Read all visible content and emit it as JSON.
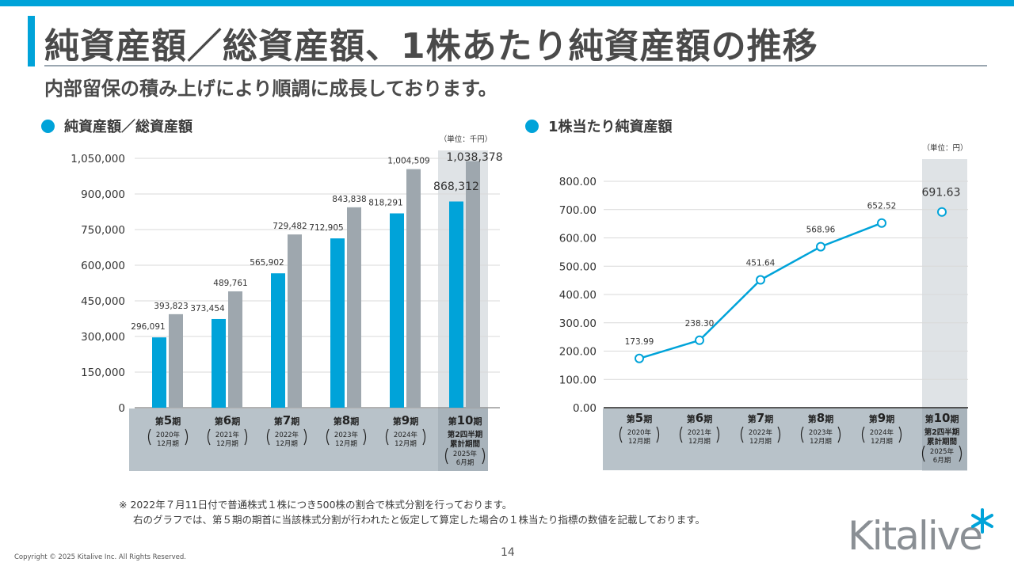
{
  "header": {
    "title": "純資産額／総資産額、1株あたり純資産額の推移",
    "subtitle": "内部留保の積み上げにより順調に成長しております。"
  },
  "colors": {
    "accent": "#00a3d9",
    "bar_gray": "#9ea7ae",
    "band": "#b8c2c9",
    "highlight": "#dfe3e6"
  },
  "left_chart": {
    "heading": "純資産額／総資産額",
    "unit": "（単位：千円）"
  },
  "right_chart": {
    "heading": "1株当たり純資産額",
    "unit": "（単位：円）"
  },
  "chart_data": [
    {
      "type": "bar",
      "title": "純資産額／総資産額",
      "unit": "（単位：千円）",
      "y_ticks": [
        "0",
        "150,000",
        "300,000",
        "450,000",
        "600,000",
        "750,000",
        "900,000",
        "1,050,000"
      ],
      "ylim": [
        0,
        1050000
      ],
      "categories": [
        {
          "num": "5",
          "year": "2020年",
          "month": "12月期"
        },
        {
          "num": "6",
          "year": "2021年",
          "month": "12月期"
        },
        {
          "num": "7",
          "year": "2022年",
          "month": "12月期"
        },
        {
          "num": "8",
          "year": "2023年",
          "month": "12月期"
        },
        {
          "num": "9",
          "year": "2024年",
          "month": "12月期"
        },
        {
          "num": "10",
          "line1": "第2四半期",
          "line2": "累計期間",
          "year": "2025年",
          "month": "6月期"
        }
      ],
      "series": [
        {
          "values": [
            296091,
            373454,
            565902,
            712905,
            818291,
            868312
          ],
          "labels": [
            "296,091",
            "373,454",
            "565,902",
            "712,905",
            "818,291",
            "868,312"
          ],
          "color": "#00a3d9"
        },
        {
          "values": [
            393823,
            489761,
            729482,
            843838,
            1004509,
            1038378
          ],
          "labels": [
            "393,823",
            "489,761",
            "729,482",
            "843,838",
            "1,004,509",
            "1,038,378"
          ],
          "color": "#9ea7ae"
        }
      ]
    },
    {
      "type": "line",
      "title": "1株当たり純資産額",
      "unit": "（単位：円）",
      "y_ticks": [
        "0.00",
        "100.00",
        "200.00",
        "300.00",
        "400.00",
        "500.00",
        "600.00",
        "700.00",
        "800.00"
      ],
      "ylim": [
        0,
        800
      ],
      "categories": [
        {
          "num": "5",
          "year": "2020年",
          "month": "12月期"
        },
        {
          "num": "6",
          "year": "2021年",
          "month": "12月期"
        },
        {
          "num": "7",
          "year": "2022年",
          "month": "12月期"
        },
        {
          "num": "8",
          "year": "2023年",
          "month": "12月期"
        },
        {
          "num": "9",
          "year": "2024年",
          "month": "12月期"
        },
        {
          "num": "10",
          "line1": "第2四半期",
          "line2": "累計期間",
          "year": "2025年",
          "month": "6月期"
        }
      ],
      "values": [
        173.99,
        238.3,
        451.64,
        568.96,
        652.52,
        691.63
      ],
      "labels": [
        "173.99",
        "238.30",
        "451.64",
        "568.96",
        "652.52",
        "691.63"
      ],
      "color": "#00a3d9"
    }
  ],
  "period_prefix": "第",
  "period_suffix": "期",
  "note": {
    "line1": "※ 2022年７月11日付で普通株式１株につき500株の割合で株式分割を行っております。",
    "line2": "右のグラフでは、第５期の期首に当該株式分割が行われたと仮定して算定した場合の１株当たり指標の数値を記載しております。"
  },
  "footer": {
    "copyright": "Copyright © 2025 Kitalive Inc. All Rights Reserved.",
    "page": "14",
    "logo": "Kitalive"
  }
}
